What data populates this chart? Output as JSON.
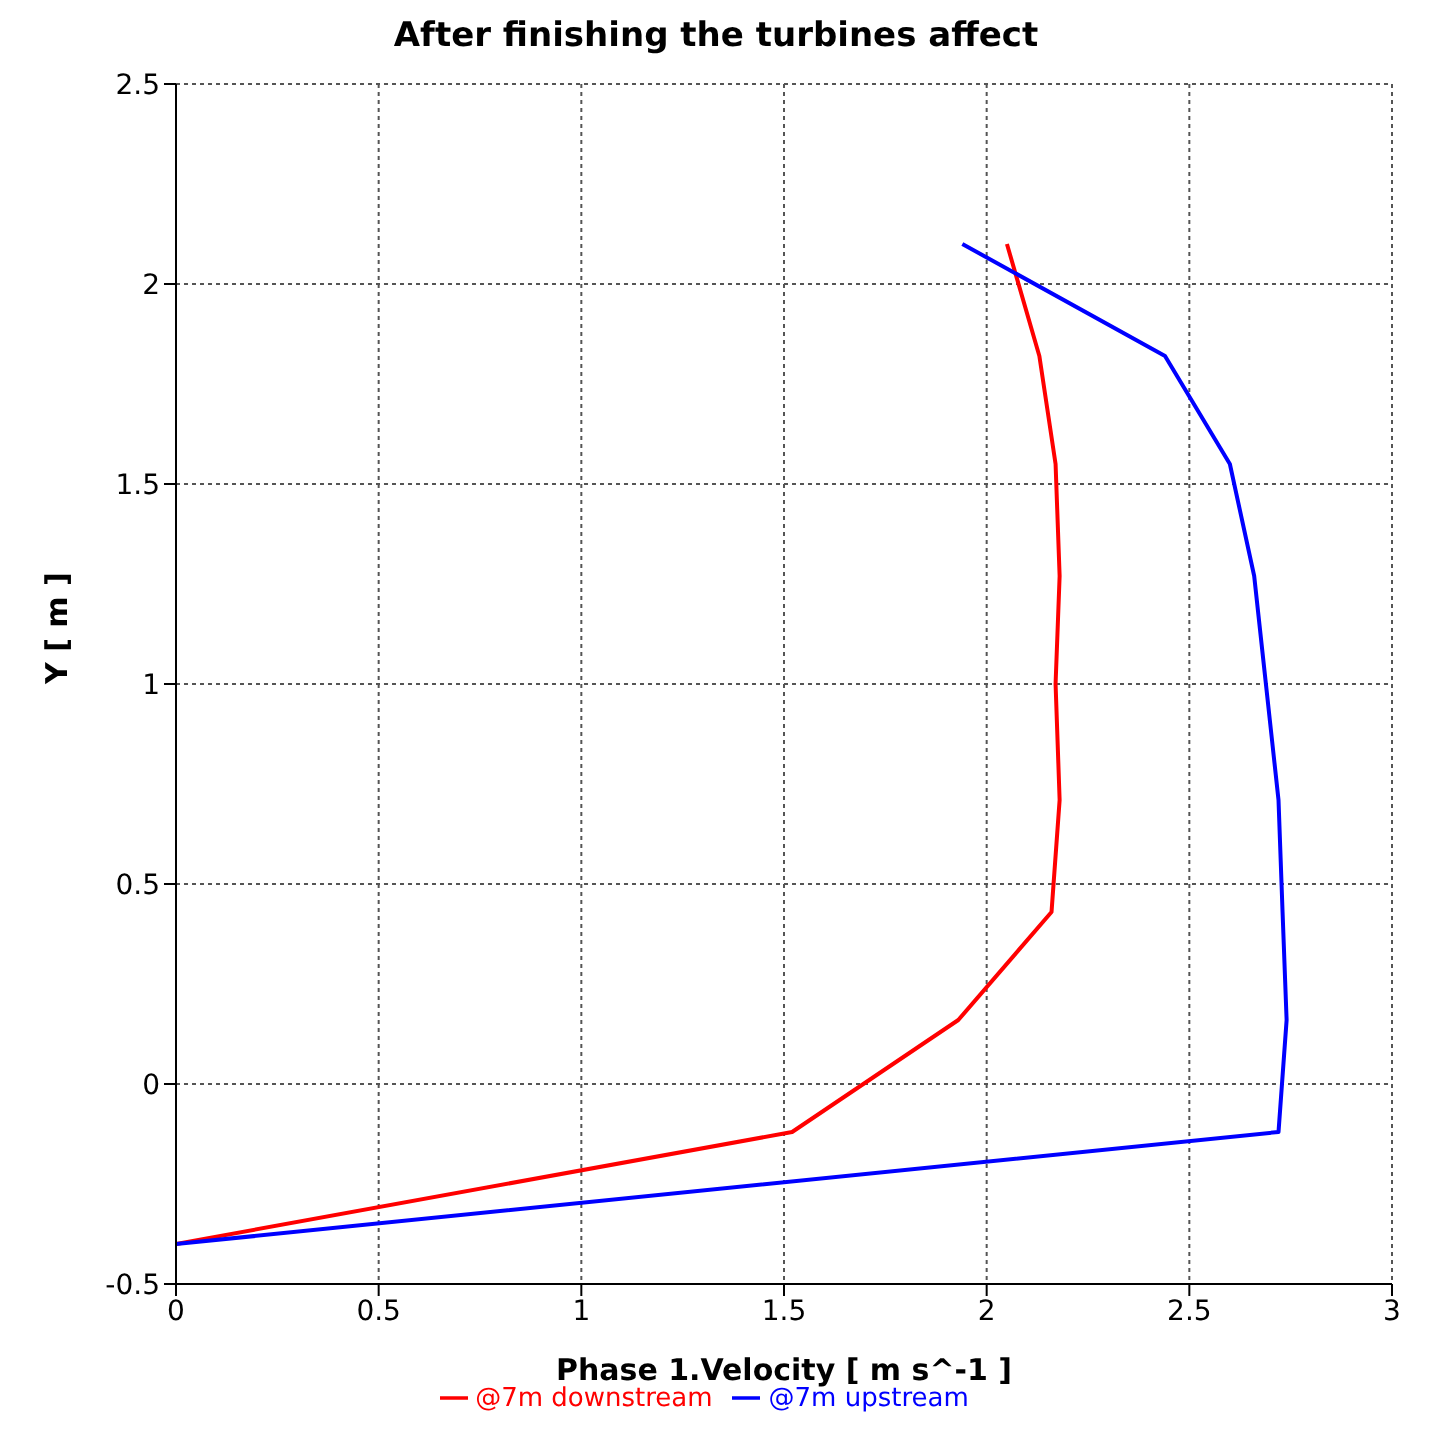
{
  "chart_data": {
    "type": "line",
    "title": "After finishing the turbines affect",
    "xlabel": "Phase 1.Velocity [ m s^-1 ]",
    "ylabel": "Y [ m ]",
    "xlim": [
      0,
      3
    ],
    "xticks": [
      0,
      0.5,
      1,
      1.5,
      2,
      2.5,
      3
    ],
    "ylim": [
      -0.5,
      2.5
    ],
    "yticks": [
      -0.5,
      0,
      0.5,
      1,
      1.5,
      2,
      2.5
    ],
    "grid": true,
    "legend": "bottom",
    "marker": "none",
    "line_style": "solid",
    "series": [
      {
        "name": "@7m downstream",
        "color": "#ff0000",
        "x": [
          2.05,
          2.13,
          2.17,
          2.18,
          2.17,
          2.18,
          2.16,
          1.93,
          1.52,
          0
        ],
        "values": [
          2.1,
          1.82,
          1.55,
          1.27,
          1.0,
          0.71,
          0.43,
          0.16,
          -0.12,
          -0.4
        ]
      },
      {
        "name": "@7m upstream",
        "color": "#0000ff",
        "x": [
          1.94,
          2.44,
          2.6,
          2.66,
          2.69,
          2.72,
          2.73,
          2.74,
          2.72,
          0
        ],
        "values": [
          2.1,
          1.82,
          1.55,
          1.27,
          0.99,
          0.71,
          0.43,
          0.16,
          -0.12,
          -0.4
        ]
      }
    ]
  }
}
